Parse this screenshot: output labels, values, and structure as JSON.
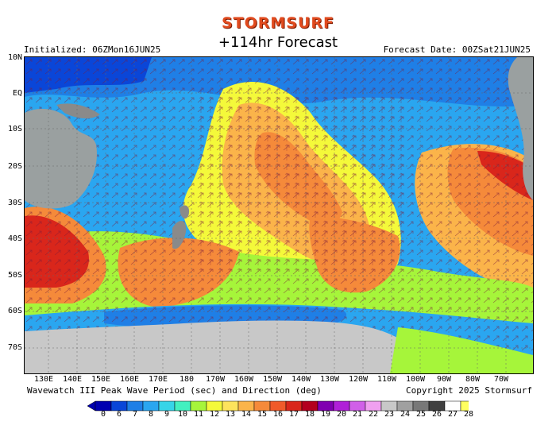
{
  "header": {
    "logo_text": "STORMSURF",
    "title": "+114hr Forecast",
    "initialized": "Initialized: 06ZMon16JUN25",
    "forecast_date": "Forecast Date: 00ZSat21JUN25"
  },
  "map": {
    "lat_labels": [
      "10N",
      "EQ",
      "10S",
      "20S",
      "30S",
      "40S",
      "50S",
      "60S",
      "70S"
    ],
    "lon_labels": [
      "130E",
      "140E",
      "150E",
      "160E",
      "170E",
      "180",
      "170W",
      "160W",
      "150W",
      "140W",
      "130W",
      "120W",
      "110W",
      "100W",
      "90W",
      "80W",
      "70W"
    ],
    "features": [
      "australia-land",
      "new-zealand-land",
      "antarctica-ice",
      "south-america-land",
      "period-contours",
      "direction-arrows"
    ]
  },
  "footer": {
    "caption": "Wavewatch III Peak Wave Period (sec) and Direction (deg)",
    "copyright": "Copyright 2025 Stormsurf"
  },
  "color_scale": {
    "labels": [
      "0",
      "6",
      "7",
      "8",
      "9",
      "10",
      "11",
      "12",
      "13",
      "14",
      "15",
      "16",
      "17",
      "18",
      "19",
      "20",
      "21",
      "22",
      "23",
      "24",
      "25",
      "26",
      "27",
      "28"
    ],
    "colors": [
      "#0000b0",
      "#0a46d8",
      "#1f7fe6",
      "#2aa6f0",
      "#36d4e8",
      "#43f0c0",
      "#a6f53a",
      "#f4f93a",
      "#fde35c",
      "#fbb44a",
      "#f58a3a",
      "#f05a2a",
      "#d9261b",
      "#b3001e",
      "#8000b0",
      "#b020d8",
      "#d060e8",
      "#f0a0f0",
      "#c8c8c8",
      "#a0a0a0",
      "#787878",
      "#404040",
      "#ffffff",
      "#ffff60"
    ]
  }
}
